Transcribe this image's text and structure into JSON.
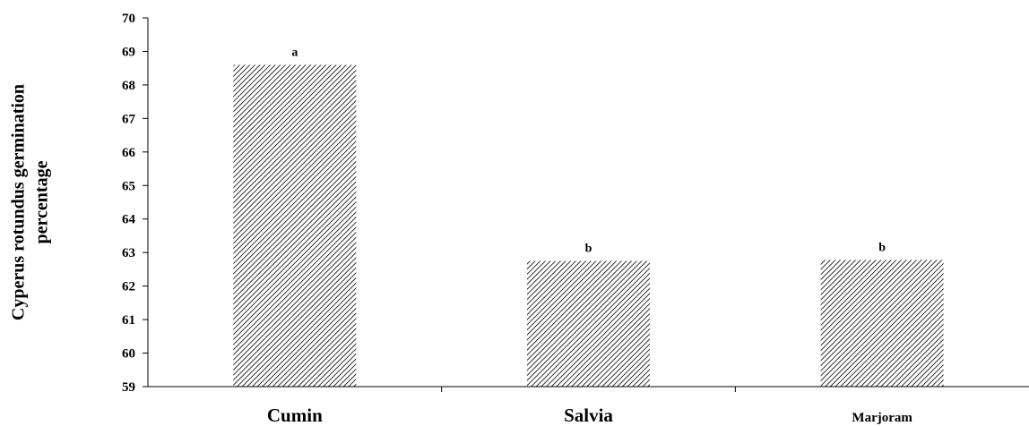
{
  "chart_data": {
    "type": "bar",
    "categories": [
      "Cumin",
      "Salvia",
      "Marjoram"
    ],
    "values": [
      68.6,
      62.75,
      62.78
    ],
    "significance_letters": [
      "a",
      "b",
      "b"
    ],
    "title": "",
    "xlabel": "",
    "ylabel_lines": [
      "Cyperus rotundus germination",
      "percentage"
    ],
    "ylim": [
      59,
      70
    ],
    "yticks": [
      59,
      60,
      61,
      62,
      63,
      64,
      65,
      66,
      67,
      68,
      69,
      70
    ],
    "grid": false,
    "bar_fill": "diagonal-hatch",
    "colors": {
      "bar_stroke": "#000000",
      "axis": "#000000",
      "background": "#ffffff"
    }
  }
}
